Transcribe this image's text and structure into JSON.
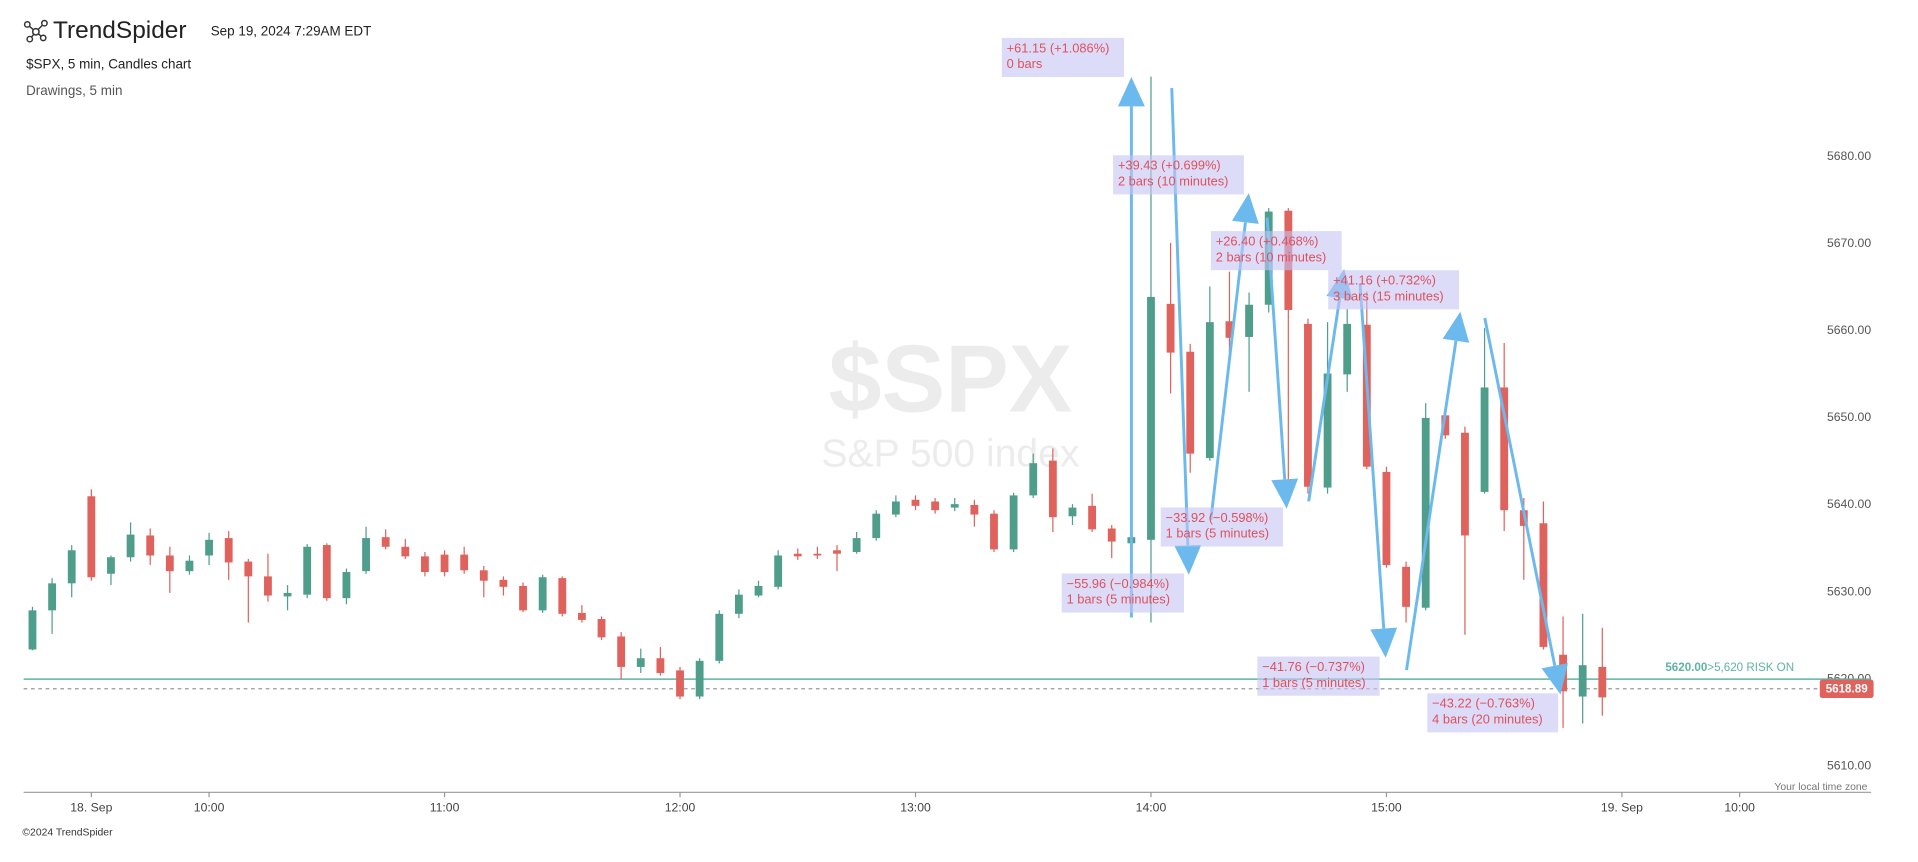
{
  "header": {
    "brand": "TrendSpider",
    "timestamp": "Sep 19, 2024 7:29AM EDT"
  },
  "footer": {
    "copyright": "©2024 TrendSpider"
  },
  "chart_data": {
    "type": "candlestick",
    "title": "$SPX, 5 min, Candles chart",
    "subtitle": "Drawings, 5 min",
    "watermark_symbol": "$SPX",
    "watermark_name": "S&P 500 index",
    "timezone_note": "Your local time zone",
    "up_color": "#4f9e8c",
    "down_color": "#e0625c",
    "grid": false,
    "x": [
      0,
      1,
      2,
      3,
      4,
      5,
      6,
      7,
      8,
      9,
      10,
      11,
      12,
      13,
      14,
      15,
      16,
      17,
      18,
      19,
      20,
      21,
      22,
      23,
      24,
      25,
      26,
      27,
      28,
      29,
      30,
      31,
      32,
      33,
      34,
      35,
      36,
      37,
      38,
      39,
      40,
      41,
      42,
      43,
      44,
      45,
      46,
      47,
      48,
      49,
      50,
      51,
      52,
      53,
      54,
      55,
      56,
      57,
      58,
      59,
      60,
      61,
      62,
      63,
      64,
      65,
      66,
      67,
      68,
      69,
      70,
      71,
      72,
      73,
      74,
      75,
      76,
      77,
      78,
      79,
      80
    ],
    "open": [
      5623.4,
      5627.9,
      5631,
      5641,
      5632.1,
      5634,
      5636.5,
      5634.2,
      5632.4,
      5634.2,
      5636.2,
      5633.5,
      5631.8,
      5629.5,
      5629.7,
      5635.4,
      5629.3,
      5632.4,
      5636.3,
      5635.2,
      5634.1,
      5634.3,
      5634.3,
      5632.5,
      5631.4,
      5630.7,
      5627.9,
      5631.6,
      5627.6,
      5626.9,
      5624.9,
      5621.4,
      5622.4,
      5621,
      5618,
      5622.1,
      5627.5,
      5629.6,
      5630.6,
      5634.4,
      5634.4,
      5634.8,
      5634.6,
      5636.2,
      5638.9,
      5640.6,
      5640.4,
      5639.7,
      5640,
      5639,
      5634.9,
      5641.1,
      5645.1,
      5638.7,
      5639.9,
      5637.3,
      5635.6,
      5636,
      5663.1,
      5657.6,
      5645.4,
      5661.1,
      5659.3,
      5663,
      5673.8,
      5660.8,
      5642,
      5655,
      5660.7,
      5643.8,
      5632.9,
      5628.2,
      5650.3,
      5648.3,
      5641.5,
      5653.5,
      5639.4,
      5637.9,
      5622.8,
      5618,
      5621.4
    ],
    "high": [
      5628.3,
      5631.6,
      5635.4,
      5641.8,
      5634.2,
      5638,
      5637.3,
      5635.2,
      5634.2,
      5636.8,
      5637,
      5633.8,
      5634.4,
      5630.8,
      5635.5,
      5635.6,
      5632.7,
      5637.5,
      5637.2,
      5636.1,
      5634.6,
      5634.8,
      5635.2,
      5633,
      5631.8,
      5631.1,
      5632,
      5631.8,
      5628.5,
      5627.2,
      5625.4,
      5623.5,
      5623.7,
      5621.4,
      5622.4,
      5627.9,
      5630.3,
      5631.3,
      5634.8,
      5635,
      5635.2,
      5635.4,
      5636.9,
      5639.4,
      5641.1,
      5641.1,
      5640.8,
      5640.8,
      5640.6,
      5639.4,
      5641.4,
      5645.9,
      5646.5,
      5640.1,
      5641.3,
      5637.7,
      5636.6,
      5689.2,
      5670.1,
      5658.5,
      5665.1,
      5666.8,
      5664.4,
      5674.1,
      5674.1,
      5661.4,
      5661,
      5662.5,
      5664.5,
      5644.4,
      5633.5,
      5651.7,
      5650.7,
      5649,
      5660.3,
      5658.6,
      5640.8,
      5640.4,
      5627.2,
      5627.5,
      5625.9
    ],
    "low": [
      5623.3,
      5625.2,
      5629.4,
      5631.3,
      5630.8,
      5633.5,
      5633.1,
      5629.9,
      5632,
      5633.1,
      5631.4,
      5626.5,
      5628.9,
      5627.9,
      5629.3,
      5629,
      5628.6,
      5632.1,
      5634.9,
      5633.8,
      5631.8,
      5631.8,
      5632.1,
      5629.4,
      5629.6,
      5627.7,
      5627.6,
      5627.2,
      5626.5,
      5624.5,
      5620,
      5620.7,
      5620.4,
      5617.7,
      5617.7,
      5621.8,
      5627,
      5629.4,
      5630.3,
      5633.7,
      5633.8,
      5632.4,
      5634.4,
      5635.9,
      5638.6,
      5639.4,
      5639,
      5639.3,
      5637.5,
      5634.6,
      5634.6,
      5640.8,
      5636.9,
      5637.7,
      5636.9,
      5633.9,
      5635.2,
      5626.5,
      5652.8,
      5643.7,
      5645.1,
      5657.5,
      5653,
      5662.1,
      5642.3,
      5641.3,
      5641.3,
      5653,
      5644.1,
      5632.8,
      5626.5,
      5627.9,
      5647.6,
      5625.1,
      5641.3,
      5637,
      5631.4,
      5623.4,
      5614.4,
      5614.9,
      5615.8
    ],
    "close": [
      5627.9,
      5631,
      5634.8,
      5631.7,
      5634,
      5636.6,
      5634.2,
      5632.4,
      5633.6,
      5636,
      5633.4,
      5631.8,
      5629.6,
      5629.9,
      5635.2,
      5629.3,
      5632.3,
      5636.2,
      5635.2,
      5634.1,
      5632.3,
      5632.3,
      5632.5,
      5631.3,
      5630.6,
      5627.9,
      5631.7,
      5627.5,
      5626.8,
      5624.8,
      5621.4,
      5622.4,
      5620.7,
      5618,
      5622.1,
      5627.5,
      5629.7,
      5630.7,
      5634.2,
      5634.1,
      5634.2,
      5634.4,
      5636.2,
      5639,
      5640.4,
      5639.9,
      5639.4,
      5640.1,
      5638.9,
      5634.9,
      5641.1,
      5644.8,
      5638.6,
      5639.7,
      5637.2,
      5635.8,
      5636.3,
      5663.9,
      5657.5,
      5645.9,
      5661,
      5659.2,
      5663,
      5673.7,
      5662.4,
      5642.1,
      5655.1,
      5660.8,
      5644.4,
      5633.1,
      5628.3,
      5650,
      5648,
      5636.5,
      5653.5,
      5639.4,
      5637.6,
      5623.7,
      5618.6,
      5621.6,
      5617.9
    ],
    "xlim": [
      -0.45,
      93.7
    ],
    "xticks": [
      {
        "value": 3,
        "label": "18. Sep"
      },
      {
        "value": 9,
        "label": "10:00"
      },
      {
        "value": 21,
        "label": "11:00"
      },
      {
        "value": 33,
        "label": "12:00"
      },
      {
        "value": 45,
        "label": "13:00"
      },
      {
        "value": 57,
        "label": "14:00"
      },
      {
        "value": 69,
        "label": "15:00"
      },
      {
        "value": 81,
        "label": "19. Sep"
      },
      {
        "value": 87,
        "label": "10:00"
      }
    ],
    "ylim": [
      5607,
      5698
    ],
    "yticks": [
      {
        "value": 5610,
        "label": "5610.00"
      },
      {
        "value": 5620,
        "label": "5620.00"
      },
      {
        "value": 5630,
        "label": "5630.00"
      },
      {
        "value": 5640,
        "label": "5640.00"
      },
      {
        "value": 5650,
        "label": "5650.00"
      },
      {
        "value": 5660,
        "label": "5660.00"
      },
      {
        "value": 5670,
        "label": "5670.00"
      },
      {
        "value": 5680,
        "label": "5680.00"
      }
    ],
    "reference_line": {
      "value": 5620,
      "label": "5620.00",
      "text": ">5,620 RISK ON",
      "color": "#5fb3a3"
    },
    "last_price": 5618.89,
    "annotations": [
      {
        "lines": [
          "+61.15 (+1.086%)",
          "0 bars"
        ]
      },
      {
        "lines": [
          "+39.43 (+0.699%)",
          "2 bars (10 minutes)"
        ]
      },
      {
        "lines": [
          "+26.40 (+0.468%)",
          "2 bars (10 minutes)"
        ]
      },
      {
        "lines": [
          "+41.16 (+0.732%)",
          "3 bars (15 minutes)"
        ]
      },
      {
        "lines": [
          "−33.92 (−0.598%)",
          "1 bars (5 minutes)"
        ]
      },
      {
        "lines": [
          "−55.96 (−0.984%)",
          "1 bars (5 minutes)"
        ]
      },
      {
        "lines": [
          "−41.76 (−0.737%)",
          "1 bars (5 minutes)"
        ]
      },
      {
        "lines": [
          "−43.22 (−0.763%)",
          "4 bars (20 minutes)"
        ]
      }
    ]
  }
}
